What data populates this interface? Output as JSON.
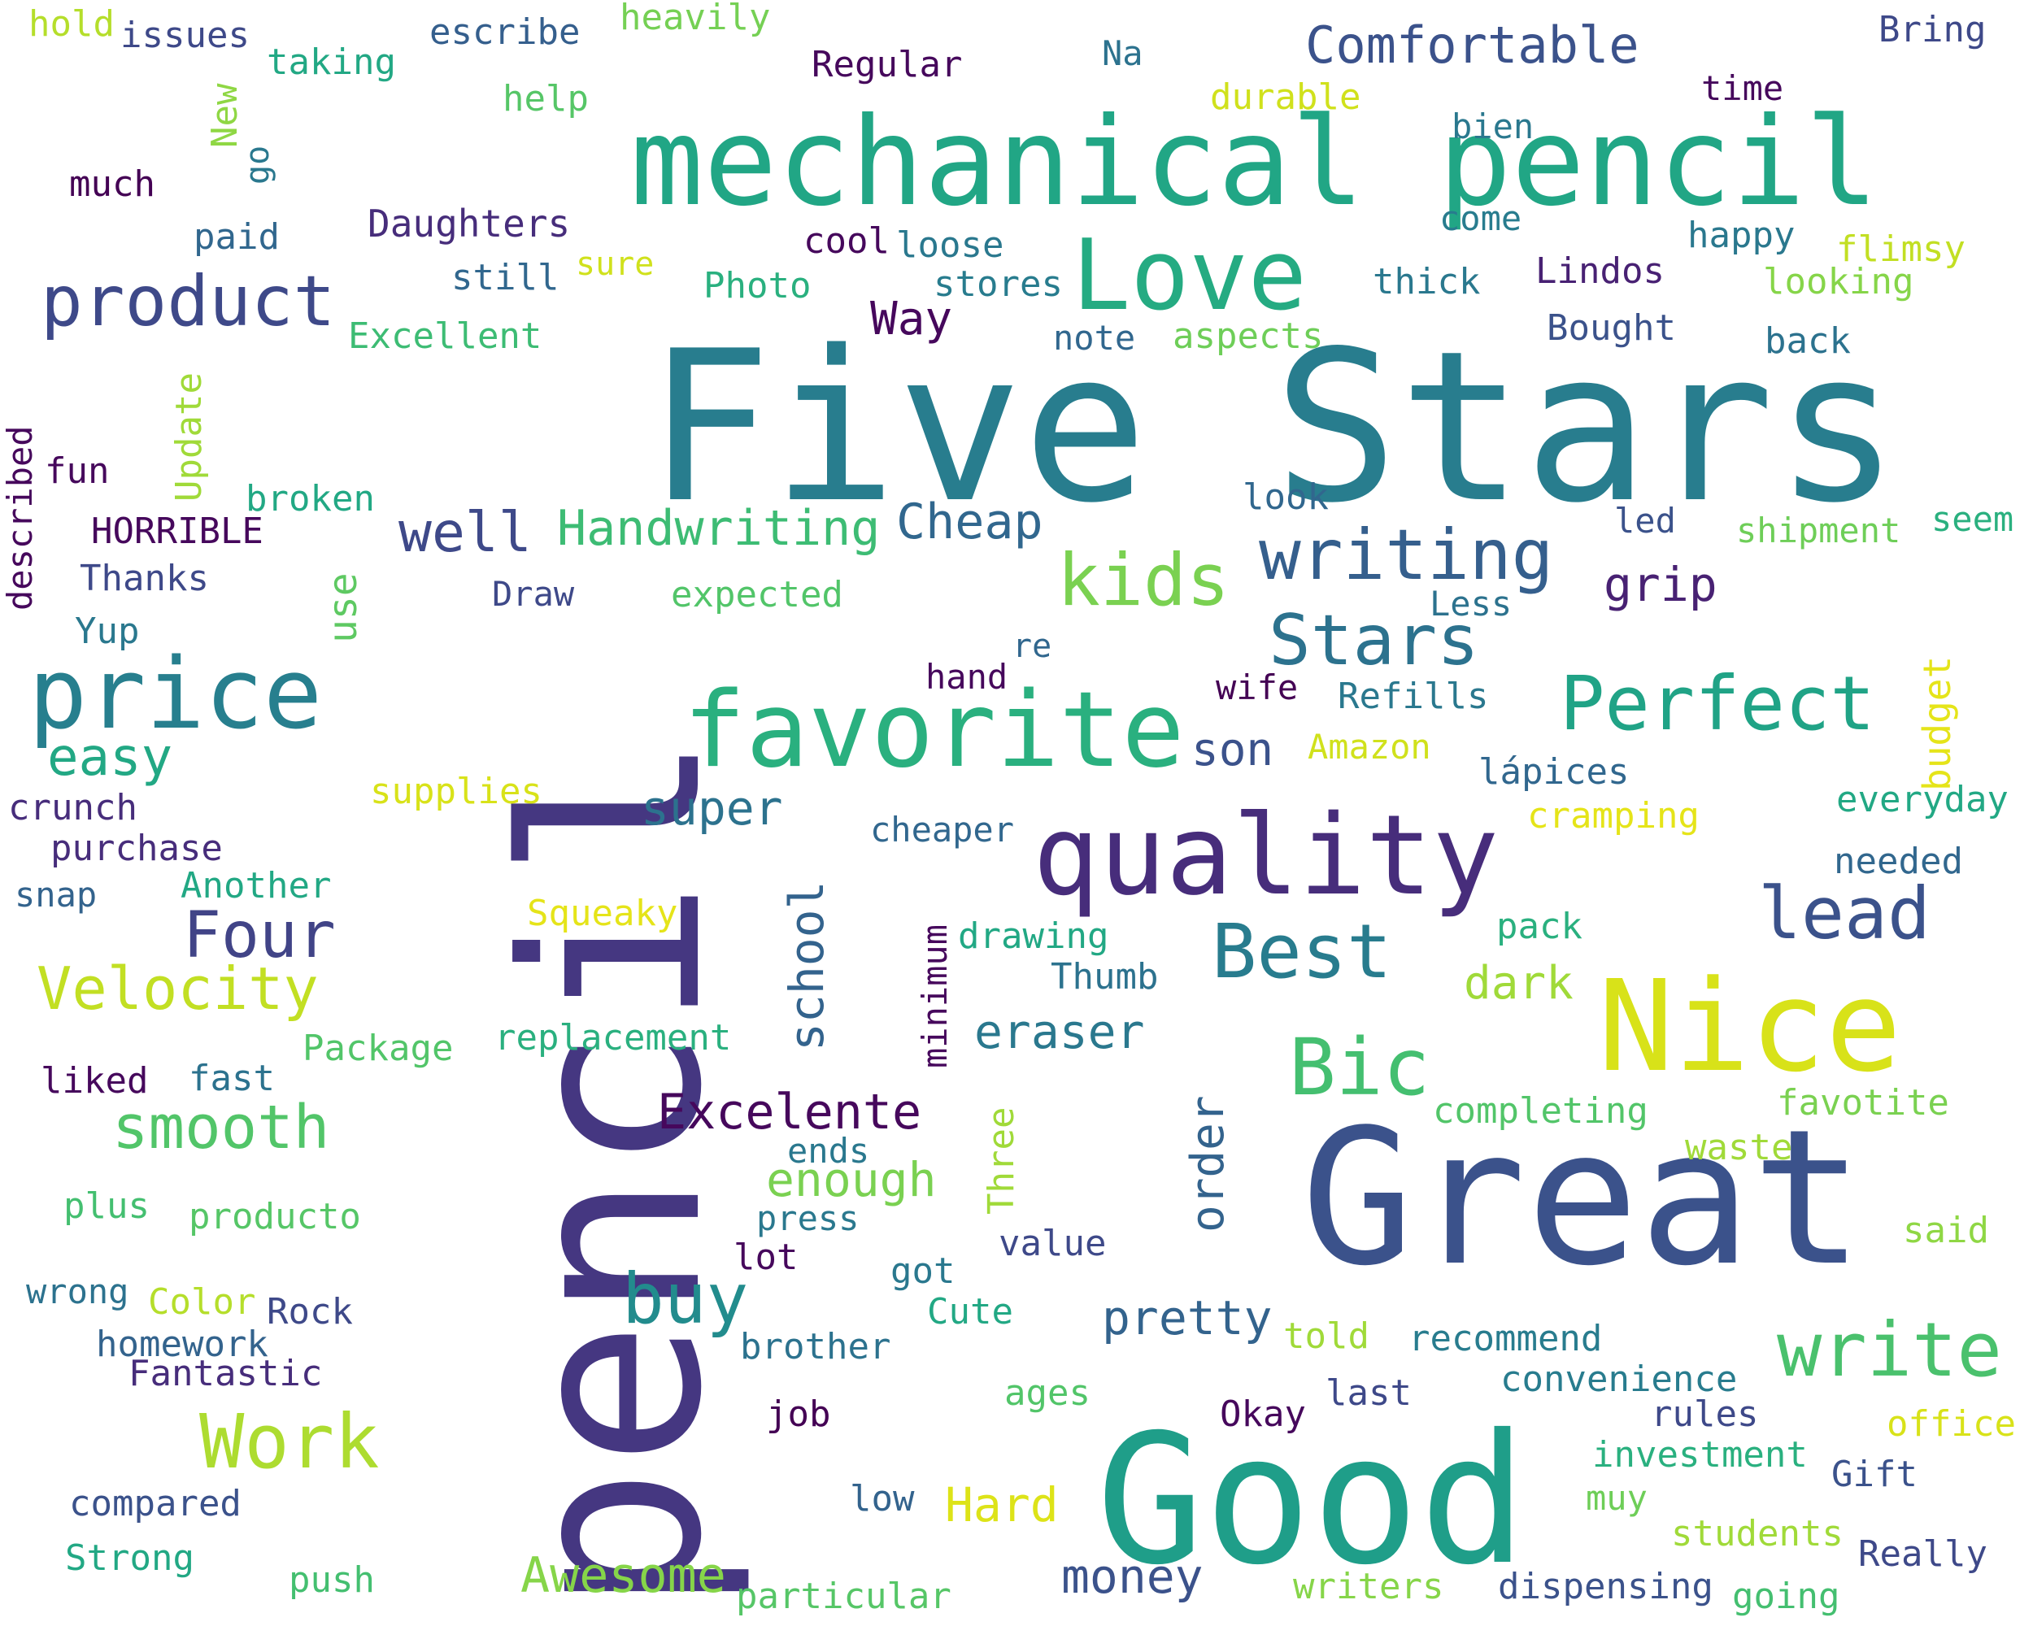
{
  "words": [
    {
      "text": "pencil",
      "color": "#453781"
    },
    {
      "text": "Five Stars",
      "color": "#287d8e"
    },
    {
      "text": "mechanical pencil",
      "color": "#21a685"
    },
    {
      "text": "Great",
      "color": "#3b528b"
    },
    {
      "text": "Good",
      "color": "#1f9e89"
    },
    {
      "text": "quality",
      "color": "#472d7b"
    },
    {
      "text": "favorite",
      "color": "#2ab07f"
    },
    {
      "text": "Nice",
      "color": "#d8e219"
    },
    {
      "text": "price",
      "color": "#277f8e"
    },
    {
      "text": "Love",
      "color": "#25ab82"
    },
    {
      "text": "product",
      "color": "#3e4989"
    },
    {
      "text": "writing",
      "color": "#355f8d"
    },
    {
      "text": "Perfect",
      "color": "#20a386"
    },
    {
      "text": "Bic",
      "color": "#44bf70"
    },
    {
      "text": "write",
      "color": "#4ac16d"
    },
    {
      "text": "kids",
      "color": "#7ad151"
    },
    {
      "text": "Stars",
      "color": "#2c728e"
    },
    {
      "text": "Best",
      "color": "#287c8e"
    },
    {
      "text": "Work",
      "color": "#addc30"
    },
    {
      "text": "buy",
      "color": "#228c8d"
    },
    {
      "text": "lead",
      "color": "#3b528b"
    },
    {
      "text": "Four",
      "color": "#414487"
    },
    {
      "text": "smooth",
      "color": "#52c569"
    },
    {
      "text": "Velocity",
      "color": "#c2df23"
    },
    {
      "text": "easy",
      "color": "#22a884"
    },
    {
      "text": "well",
      "color": "#3e4989"
    },
    {
      "text": "Handwriting",
      "color": "#3dbc74"
    },
    {
      "text": "Cheap",
      "color": "#31678e"
    },
    {
      "text": "Excelente",
      "color": "#46085c"
    },
    {
      "text": "super",
      "color": "#2c728e"
    },
    {
      "text": "school",
      "color": "#33638d"
    },
    {
      "text": "Comfortable",
      "color": "#3b528b"
    },
    {
      "text": "eraser",
      "color": "#2a788e"
    },
    {
      "text": "enough",
      "color": "#7ad151"
    },
    {
      "text": "pretty",
      "color": "#33638d"
    },
    {
      "text": "grip",
      "color": "#482173"
    },
    {
      "text": "dark",
      "color": "#a0da39"
    },
    {
      "text": "Awesome",
      "color": "#86d549"
    },
    {
      "text": "Hard",
      "color": "#dde318"
    },
    {
      "text": "money",
      "color": "#3b528b"
    },
    {
      "text": "order",
      "color": "#33638d"
    },
    {
      "text": "use",
      "color": "#5ec962"
    },
    {
      "text": "budget",
      "color": "#e5e419"
    },
    {
      "text": "Way",
      "color": "#46085c"
    },
    {
      "text": "son",
      "color": "#3b528b"
    },
    {
      "text": "Regular",
      "color": "#46085c"
    },
    {
      "text": "issues",
      "color": "#3e4989"
    },
    {
      "text": "escribe",
      "color": "#355f8d"
    },
    {
      "text": "heavily",
      "color": "#75d054"
    },
    {
      "text": "hold",
      "color": "#b5de2b"
    },
    {
      "text": "taking",
      "color": "#22a884"
    },
    {
      "text": "Bring",
      "color": "#3e4989"
    },
    {
      "text": "Na",
      "color": "#2c728e"
    },
    {
      "text": "time",
      "color": "#46085c"
    },
    {
      "text": "help",
      "color": "#56c667"
    },
    {
      "text": "durable",
      "color": "#d0e11c"
    },
    {
      "text": "bien",
      "color": "#2a788e"
    },
    {
      "text": "New",
      "color": "#8fd744"
    },
    {
      "text": "go",
      "color": "#2a788e"
    },
    {
      "text": "much",
      "color": "#440154"
    },
    {
      "text": "Daughters",
      "color": "#472d7b"
    },
    {
      "text": "paid",
      "color": "#31678e"
    },
    {
      "text": "cool",
      "color": "#46085c"
    },
    {
      "text": "loose",
      "color": "#2a788e"
    },
    {
      "text": "come",
      "color": "#287c8e"
    },
    {
      "text": "happy",
      "color": "#2a788e"
    },
    {
      "text": "flimsy",
      "color": "#c2df23"
    },
    {
      "text": "still",
      "color": "#31678e"
    },
    {
      "text": "sure",
      "color": "#d0e11c"
    },
    {
      "text": "Photo",
      "color": "#2ab07f"
    },
    {
      "text": "stores",
      "color": "#287c8e"
    },
    {
      "text": "thick",
      "color": "#2a788e"
    },
    {
      "text": "Lindos",
      "color": "#482173"
    },
    {
      "text": "looking",
      "color": "#86d549"
    },
    {
      "text": "Excellent",
      "color": "#3dbc74"
    },
    {
      "text": "note",
      "color": "#31678e"
    },
    {
      "text": "aspects",
      "color": "#6ece58"
    },
    {
      "text": "Bought",
      "color": "#3b528b"
    },
    {
      "text": "back",
      "color": "#2c728e"
    },
    {
      "text": "Update",
      "color": "#a0da39"
    },
    {
      "text": "described",
      "color": "#46085c"
    },
    {
      "text": "fun",
      "color": "#46085c"
    },
    {
      "text": "broken",
      "color": "#22a884"
    },
    {
      "text": "HORRIBLE",
      "color": "#46085c"
    },
    {
      "text": "Thanks",
      "color": "#3e4989"
    },
    {
      "text": "look",
      "color": "#31678e"
    },
    {
      "text": "led",
      "color": "#3b528b"
    },
    {
      "text": "shipment",
      "color": "#6ece58"
    },
    {
      "text": "seem",
      "color": "#2ab07f"
    },
    {
      "text": "Draw",
      "color": "#3e4989"
    },
    {
      "text": "expected",
      "color": "#52c569"
    },
    {
      "text": "Less",
      "color": "#2c728e"
    },
    {
      "text": "Yup",
      "color": "#2a788e"
    },
    {
      "text": "re",
      "color": "#31678e"
    },
    {
      "text": "hand",
      "color": "#46085c"
    },
    {
      "text": "wife",
      "color": "#440154"
    },
    {
      "text": "Refills",
      "color": "#2a788e"
    },
    {
      "text": "Amazon",
      "color": "#d0e11c"
    },
    {
      "text": "lápices",
      "color": "#31678e"
    },
    {
      "text": "supplies",
      "color": "#d8e219"
    },
    {
      "text": "crunch",
      "color": "#472d7b"
    },
    {
      "text": "cheaper",
      "color": "#31678e"
    },
    {
      "text": "cramping",
      "color": "#e5e419"
    },
    {
      "text": "everyday",
      "color": "#22a884"
    },
    {
      "text": "purchase",
      "color": "#472d7b"
    },
    {
      "text": "snap",
      "color": "#33638d"
    },
    {
      "text": "Another",
      "color": "#22a884"
    },
    {
      "text": "needed",
      "color": "#31678e"
    },
    {
      "text": "Squeaky",
      "color": "#e5e419"
    },
    {
      "text": "pack",
      "color": "#2ab07f"
    },
    {
      "text": "drawing",
      "color": "#22a884"
    },
    {
      "text": "minimum",
      "color": "#46085c"
    },
    {
      "text": "Thumb",
      "color": "#2c728e"
    },
    {
      "text": "Package",
      "color": "#52c569"
    },
    {
      "text": "replacement",
      "color": "#2ab07f"
    },
    {
      "text": "liked",
      "color": "#46085c"
    },
    {
      "text": "fast",
      "color": "#2c728e"
    },
    {
      "text": "completing",
      "color": "#52c569"
    },
    {
      "text": "favotite",
      "color": "#7ad151"
    },
    {
      "text": "Three",
      "color": "#a0da39"
    },
    {
      "text": "ends",
      "color": "#2a788e"
    },
    {
      "text": "waste",
      "color": "#a0da39"
    },
    {
      "text": "plus",
      "color": "#44bf70"
    },
    {
      "text": "producto",
      "color": "#56c667"
    },
    {
      "text": "press",
      "color": "#2a788e"
    },
    {
      "text": "lot",
      "color": "#46085c"
    },
    {
      "text": "value",
      "color": "#3e4989"
    },
    {
      "text": "said",
      "color": "#8fd744"
    },
    {
      "text": "wrong",
      "color": "#2c728e"
    },
    {
      "text": "Color",
      "color": "#b5de2b"
    },
    {
      "text": "Rock",
      "color": "#3e4989"
    },
    {
      "text": "got",
      "color": "#2a788e"
    },
    {
      "text": "Cute",
      "color": "#22a884"
    },
    {
      "text": "homework",
      "color": "#33638d"
    },
    {
      "text": "told",
      "color": "#a0da39"
    },
    {
      "text": "recommend",
      "color": "#287c8e"
    },
    {
      "text": "brother",
      "color": "#2c728e"
    },
    {
      "text": "Fantastic",
      "color": "#472d7b"
    },
    {
      "text": "convenience",
      "color": "#287c8e"
    },
    {
      "text": "ages",
      "color": "#52c569"
    },
    {
      "text": "last",
      "color": "#3e4989"
    },
    {
      "text": "job",
      "color": "#440154"
    },
    {
      "text": "Okay",
      "color": "#46085c"
    },
    {
      "text": "rules",
      "color": "#3e4989"
    },
    {
      "text": "office",
      "color": "#d8e219"
    },
    {
      "text": "investment",
      "color": "#2ab07f"
    },
    {
      "text": "Gift",
      "color": "#3b528b"
    },
    {
      "text": "muy",
      "color": "#6ece58"
    },
    {
      "text": "compared",
      "color": "#3b528b"
    },
    {
      "text": "low",
      "color": "#33638d"
    },
    {
      "text": "students",
      "color": "#a0da39"
    },
    {
      "text": "Really",
      "color": "#3e4989"
    },
    {
      "text": "Strong",
      "color": "#22a884"
    },
    {
      "text": "push",
      "color": "#44bf70"
    },
    {
      "text": "particular",
      "color": "#56c667"
    },
    {
      "text": "writers",
      "color": "#86d549"
    },
    {
      "text": "dispensing",
      "color": "#3b528b"
    },
    {
      "text": "going",
      "color": "#44bf70"
    }
  ]
}
